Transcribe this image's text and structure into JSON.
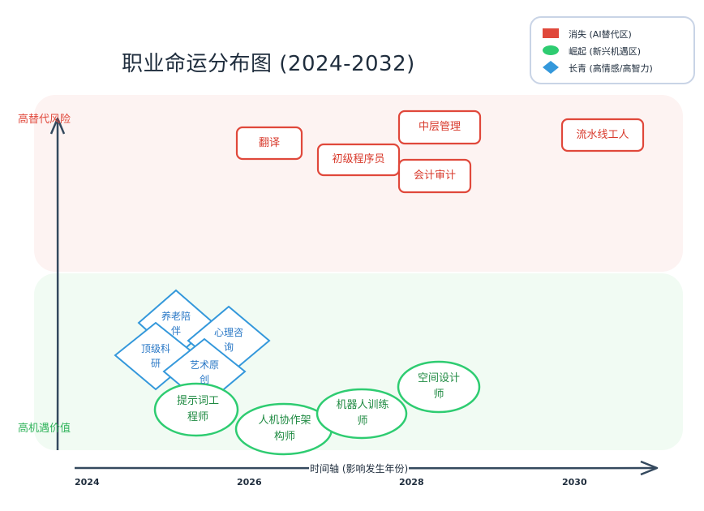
{
  "title": "职业命运分布图 (2024-2032)",
  "y_axis": {
    "top_label": "高替代风险",
    "bottom_label": "高机遇价值"
  },
  "x_axis": {
    "title": "时间轴 (影响发生年份)",
    "ticks": [
      "2024",
      "2026",
      "2028",
      "2030"
    ]
  },
  "legend": {
    "items": [
      {
        "label": "消失 (AI替代区)",
        "shape": "rectangle",
        "color": "#e0483b"
      },
      {
        "label": "崛起 (新兴机遇区)",
        "shape": "ellipse",
        "color": "#2ecc71"
      },
      {
        "label": "长青 (高情感/高智力)",
        "shape": "diamond",
        "color": "#3498db"
      }
    ]
  },
  "nodes": {
    "vanishing": [
      {
        "label": "翻译"
      },
      {
        "label": "初级程序员"
      },
      {
        "label": "中层管理"
      },
      {
        "label": "会计审计"
      },
      {
        "label": "流水线工人"
      }
    ],
    "rising": [
      {
        "label": "提示词工程师"
      },
      {
        "label": "人机协作架构师"
      },
      {
        "label": "机器人训练师"
      },
      {
        "label": "空间设计师"
      }
    ],
    "evergreen": [
      {
        "label": "养老陪伴"
      },
      {
        "label": "心理咨询"
      },
      {
        "label": "顶级科研"
      },
      {
        "label": "艺术原创"
      }
    ]
  },
  "colors": {
    "risk_zone": "#fdf3f2",
    "opportunity_zone": "#f1fbf3",
    "red": "#e0483b",
    "green": "#2ecc71",
    "blue": "#3498db",
    "axis": "#34495e"
  }
}
